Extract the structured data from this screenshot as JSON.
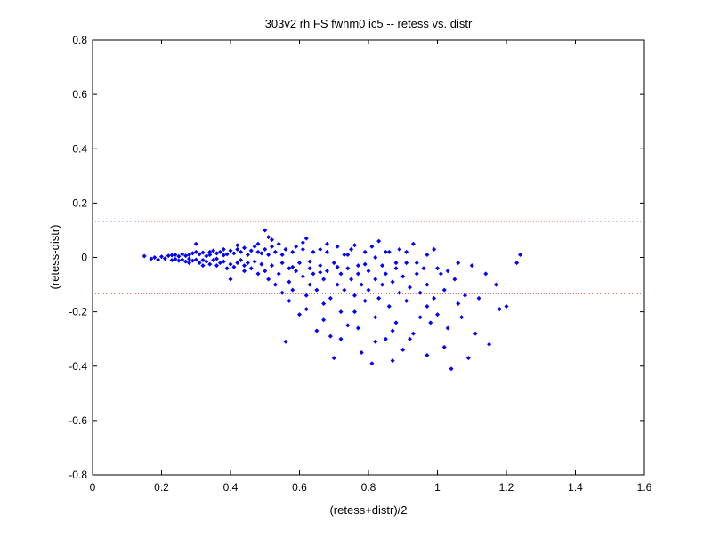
{
  "chart_data": {
    "type": "scatter",
    "title": "303v2 rh FS fwhm0 ic5 -- retess vs. distr",
    "xlabel": "(retess+distr)/2",
    "ylabel": "(retess-distr)",
    "xlim": [
      0,
      1.6
    ],
    "ylim": [
      -0.8,
      0.8
    ],
    "xticks": [
      "0",
      "0.2",
      "0.4",
      "0.6",
      "0.8",
      "1",
      "1.2",
      "1.4",
      "1.6"
    ],
    "yticks": [
      "0.8",
      "0.6",
      "0.4",
      "0.2",
      "0",
      "-0.2",
      "-0.4",
      "-0.6",
      "-0.8"
    ],
    "grid": false,
    "marker_color": "#0000ff",
    "reference_lines": {
      "y": [
        0.133,
        -0.133
      ],
      "color": "#ff0000",
      "style": "dotted"
    },
    "points": [
      [
        0.15,
        0.005
      ],
      [
        0.17,
        -0.005
      ],
      [
        0.18,
        0.0
      ],
      [
        0.19,
        -0.008
      ],
      [
        0.2,
        0.003
      ],
      [
        0.21,
        -0.004
      ],
      [
        0.22,
        0.006
      ],
      [
        0.23,
        -0.01
      ],
      [
        0.23,
        0.008
      ],
      [
        0.24,
        -0.006
      ],
      [
        0.24,
        0.01
      ],
      [
        0.25,
        -0.012
      ],
      [
        0.25,
        0.004
      ],
      [
        0.26,
        -0.008
      ],
      [
        0.26,
        0.012
      ],
      [
        0.27,
        -0.015
      ],
      [
        0.27,
        0.006
      ],
      [
        0.28,
        -0.02
      ],
      [
        0.28,
        0.01
      ],
      [
        0.28,
        -0.005
      ],
      [
        0.29,
        0.015
      ],
      [
        0.29,
        -0.012
      ],
      [
        0.3,
        0.02
      ],
      [
        0.3,
        -0.008
      ],
      [
        0.3,
        0.05
      ],
      [
        0.31,
        -0.02
      ],
      [
        0.31,
        0.012
      ],
      [
        0.32,
        -0.01
      ],
      [
        0.32,
        0.018
      ],
      [
        0.32,
        -0.03
      ],
      [
        0.33,
        0.005
      ],
      [
        0.33,
        -0.015
      ],
      [
        0.34,
        0.02
      ],
      [
        0.34,
        -0.025
      ],
      [
        0.34,
        0.01
      ],
      [
        0.35,
        -0.01
      ],
      [
        0.35,
        0.025
      ],
      [
        0.36,
        -0.03
      ],
      [
        0.36,
        0.015
      ],
      [
        0.36,
        -0.005
      ],
      [
        0.37,
        0.02
      ],
      [
        0.37,
        -0.02
      ],
      [
        0.38,
        0.03
      ],
      [
        0.38,
        -0.015
      ],
      [
        0.38,
        0.008
      ],
      [
        0.39,
        -0.04
      ],
      [
        0.39,
        0.012
      ],
      [
        0.4,
        -0.025
      ],
      [
        0.4,
        0.025
      ],
      [
        0.4,
        -0.08
      ],
      [
        0.41,
        0.015
      ],
      [
        0.41,
        -0.035
      ],
      [
        0.42,
        0.03
      ],
      [
        0.42,
        -0.02
      ],
      [
        0.42,
        0.045
      ],
      [
        0.43,
        -0.01
      ],
      [
        0.43,
        0.02
      ],
      [
        0.44,
        -0.03
      ],
      [
        0.44,
        0.035
      ],
      [
        0.44,
        -0.05
      ],
      [
        0.45,
        0.01
      ],
      [
        0.45,
        -0.02
      ],
      [
        0.46,
        0.025
      ],
      [
        0.46,
        -0.04
      ],
      [
        0.47,
        0.04
      ],
      [
        0.47,
        -0.015
      ],
      [
        0.48,
        0.02
      ],
      [
        0.48,
        -0.06
      ],
      [
        0.48,
        0.05
      ],
      [
        0.49,
        -0.025
      ],
      [
        0.49,
        0.015
      ],
      [
        0.5,
        0.1
      ],
      [
        0.5,
        -0.05
      ],
      [
        0.5,
        0.03
      ],
      [
        0.51,
        -0.08
      ],
      [
        0.51,
        0.01
      ],
      [
        0.51,
        0.075
      ],
      [
        0.52,
        -0.03
      ],
      [
        0.52,
        0.04
      ],
      [
        0.53,
        -0.1
      ],
      [
        0.53,
        0.02
      ],
      [
        0.54,
        -0.06
      ],
      [
        0.54,
        0.05
      ],
      [
        0.55,
        -0.02
      ],
      [
        0.55,
        -0.13
      ],
      [
        0.56,
        -0.31
      ],
      [
        0.56,
        0.03
      ],
      [
        0.57,
        -0.04
      ],
      [
        0.57,
        -0.09
      ],
      [
        0.58,
        0.02
      ],
      [
        0.58,
        -0.12
      ],
      [
        0.59,
        -0.05
      ],
      [
        0.59,
        0.04
      ],
      [
        0.6,
        -0.21
      ],
      [
        0.6,
        -0.02
      ],
      [
        0.61,
        -0.07
      ],
      [
        0.61,
        0.03
      ],
      [
        0.62,
        -0.14
      ],
      [
        0.62,
        0.07
      ],
      [
        0.63,
        -0.04
      ],
      [
        0.63,
        -0.1
      ],
      [
        0.64,
        0.02
      ],
      [
        0.64,
        -0.06
      ],
      [
        0.65,
        -0.27
      ],
      [
        0.65,
        -0.12
      ],
      [
        0.66,
        0.03
      ],
      [
        0.66,
        -0.03
      ],
      [
        0.67,
        -0.17
      ],
      [
        0.67,
        -0.08
      ],
      [
        0.68,
        0.02
      ],
      [
        0.68,
        -0.05
      ],
      [
        0.69,
        -0.29
      ],
      [
        0.69,
        -0.15
      ],
      [
        0.7,
        -0.37
      ],
      [
        0.7,
        -0.02
      ],
      [
        0.71,
        -0.1
      ],
      [
        0.71,
        0.04
      ],
      [
        0.72,
        -0.06
      ],
      [
        0.72,
        -0.2
      ],
      [
        0.73,
        -0.12
      ],
      [
        0.73,
        0.01
      ],
      [
        0.74,
        -0.04
      ],
      [
        0.74,
        -0.25
      ],
      [
        0.75,
        -0.08
      ],
      [
        0.75,
        0.03
      ],
      [
        0.76,
        -0.2
      ],
      [
        0.76,
        -0.14
      ],
      [
        0.77,
        -0.03
      ],
      [
        0.77,
        -0.06
      ],
      [
        0.78,
        -0.35
      ],
      [
        0.78,
        -0.1
      ],
      [
        0.79,
        0.02
      ],
      [
        0.79,
        -0.16
      ],
      [
        0.8,
        -0.05
      ],
      [
        0.8,
        -0.12
      ],
      [
        0.81,
        -0.39
      ],
      [
        0.81,
        0.04
      ],
      [
        0.82,
        -0.08
      ],
      [
        0.82,
        -0.22
      ],
      [
        0.83,
        0.06
      ],
      [
        0.83,
        -0.15
      ],
      [
        0.84,
        -0.03
      ],
      [
        0.84,
        -0.1
      ],
      [
        0.85,
        -0.3
      ],
      [
        0.85,
        -0.06
      ],
      [
        0.86,
        0.02
      ],
      [
        0.86,
        -0.18
      ],
      [
        0.87,
        -0.38
      ],
      [
        0.87,
        -0.09
      ],
      [
        0.88,
        -0.04
      ],
      [
        0.88,
        -0.24
      ],
      [
        0.89,
        -0.13
      ],
      [
        0.89,
        0.03
      ],
      [
        0.9,
        -0.07
      ],
      [
        0.9,
        -0.34
      ],
      [
        0.91,
        -0.02
      ],
      [
        0.91,
        -0.16
      ],
      [
        0.92,
        -0.11
      ],
      [
        0.93,
        0.05
      ],
      [
        0.93,
        -0.28
      ],
      [
        0.94,
        -0.06
      ],
      [
        0.95,
        -0.13
      ],
      [
        0.95,
        -0.22
      ],
      [
        0.96,
        -0.04
      ],
      [
        0.97,
        -0.36
      ],
      [
        0.97,
        -0.1
      ],
      [
        0.98,
        -0.24
      ],
      [
        0.99,
        0.03
      ],
      [
        0.99,
        -0.15
      ],
      [
        1.0,
        -0.21
      ],
      [
        1.01,
        -0.06
      ],
      [
        1.02,
        -0.12
      ],
      [
        1.03,
        -0.26
      ],
      [
        1.04,
        -0.41
      ],
      [
        1.05,
        -0.08
      ],
      [
        1.06,
        -0.17
      ],
      [
        1.07,
        -0.22
      ],
      [
        1.08,
        -0.14
      ],
      [
        1.09,
        -0.37
      ],
      [
        1.1,
        -0.03
      ],
      [
        1.11,
        -0.28
      ],
      [
        1.12,
        -0.15
      ],
      [
        1.14,
        -0.06
      ],
      [
        1.15,
        -0.32
      ],
      [
        1.17,
        -0.1
      ],
      [
        1.18,
        -0.19
      ],
      [
        1.2,
        -0.18
      ],
      [
        1.23,
        -0.02
      ],
      [
        1.24,
        0.01
      ],
      [
        0.52,
        0.065
      ],
      [
        0.55,
        0.01
      ],
      [
        0.58,
        -0.035
      ],
      [
        0.61,
        0.055
      ],
      [
        0.63,
        -0.015
      ],
      [
        0.66,
        -0.055
      ],
      [
        0.68,
        0.05
      ],
      [
        0.71,
        -0.035
      ],
      [
        0.74,
        0.01
      ],
      [
        0.76,
        0.045
      ],
      [
        0.79,
        -0.025
      ],
      [
        0.82,
        0.0
      ],
      [
        0.85,
        0.02
      ],
      [
        0.88,
        -0.02
      ],
      [
        0.91,
        0.02
      ],
      [
        0.94,
        -0.02
      ],
      [
        0.97,
        0.01
      ],
      [
        1.0,
        -0.04
      ],
      [
        1.03,
        -0.05
      ],
      [
        1.06,
        -0.02
      ],
      [
        0.57,
        -0.16
      ],
      [
        0.62,
        -0.19
      ],
      [
        0.67,
        -0.23
      ],
      [
        0.72,
        -0.3
      ],
      [
        0.77,
        -0.26
      ],
      [
        0.82,
        -0.31
      ],
      [
        0.87,
        -0.27
      ],
      [
        0.92,
        -0.3
      ],
      [
        0.97,
        -0.18
      ],
      [
        1.02,
        -0.33
      ]
    ]
  }
}
